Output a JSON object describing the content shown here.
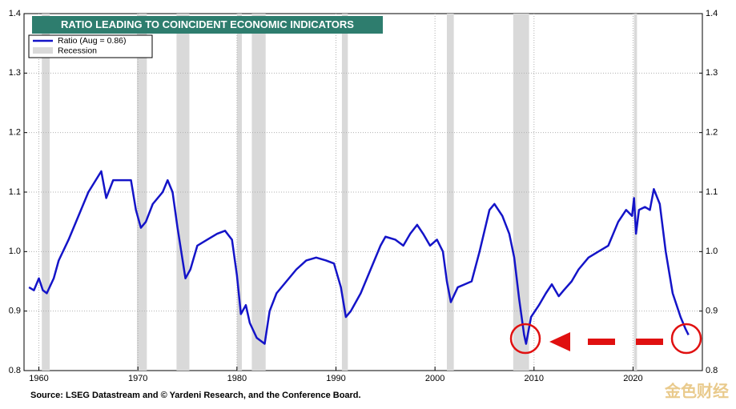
{
  "chart_data": {
    "type": "line",
    "title": "RATIO LEADING TO COINCIDENT ECONOMIC INDICATORS",
    "source": "Source: LSEG Datastream and © Yardeni Research, and the Conference Board.",
    "watermark": "金色财经",
    "recession_label": "Recession",
    "recession_color": "#d9d9d9",
    "recessions": [
      [
        1960.3,
        1961.1
      ],
      [
        1969.9,
        1970.9
      ],
      [
        1973.9,
        1975.2
      ],
      [
        1980.0,
        1980.5
      ],
      [
        1981.5,
        1982.9
      ],
      [
        1990.6,
        1991.2
      ],
      [
        2001.2,
        2001.9
      ],
      [
        2007.9,
        2009.5
      ],
      [
        2020.1,
        2020.4
      ]
    ],
    "xlim": [
      1958.5,
      2027
    ],
    "xticks": [
      1960,
      1970,
      1980,
      1990,
      2000,
      2010,
      2020
    ],
    "ylim": [
      0.8,
      1.4
    ],
    "yticks": [
      0.8,
      0.9,
      {
        "value": 1,
        "label": "1.0"
      },
      1.1,
      1.2,
      1.3,
      1.4
    ],
    "y2lim": [
      0.8,
      1.4
    ],
    "y2ticks": [
      0.8,
      0.9,
      {
        "value": 1,
        "label": "1.0"
      },
      1.1,
      1.2,
      1.3,
      1.4
    ],
    "grid": true,
    "series": [
      {
        "name": "Ratio  (Aug = 0.86)",
        "color": "#1414c8",
        "x": [
          1959.0,
          1959.5,
          1960.0,
          1960.4,
          1960.8,
          1961.5,
          1962,
          1963,
          1964,
          1965,
          1966.3,
          1966.8,
          1967.5,
          1968.5,
          1969.3,
          1969.8,
          1970.3,
          1970.8,
          1971.5,
          1972.5,
          1973,
          1973.5,
          1974,
          1974.8,
          1975.3,
          1976,
          1977,
          1978,
          1978.8,
          1979.5,
          1980,
          1980.4,
          1980.9,
          1981.3,
          1982,
          1982.8,
          1983.3,
          1984,
          1985,
          1986,
          1987,
          1988,
          1989,
          1989.8,
          1990.5,
          1991,
          1991.5,
          1992.5,
          1993.5,
          1994.5,
          1995,
          1996,
          1996.8,
          1997.5,
          1998.2,
          1998.8,
          1999.5,
          2000.2,
          2000.8,
          2001.2,
          2001.6,
          2002.3,
          2003,
          2003.7,
          2004.5,
          2005.5,
          2006,
          2006.8,
          2007.5,
          2008,
          2008.5,
          2009.0,
          2009.2,
          2009.7,
          2010.5,
          2011.2,
          2011.8,
          2012.5,
          2013,
          2013.8,
          2014.5,
          2015.5,
          2016.5,
          2017.5,
          2018.5,
          2019.3,
          2019.9,
          2020.1,
          2020.3,
          2020.6,
          2021.2,
          2021.7,
          2022.1,
          2022.7,
          2023.3,
          2024,
          2024.8,
          2025.3,
          2025.6
        ],
        "values": [
          0.94,
          0.935,
          0.955,
          0.935,
          0.93,
          0.955,
          0.985,
          1.02,
          1.06,
          1.1,
          1.135,
          1.09,
          1.12,
          1.12,
          1.12,
          1.07,
          1.04,
          1.05,
          1.08,
          1.1,
          1.12,
          1.1,
          1.04,
          0.955,
          0.97,
          1.01,
          1.02,
          1.03,
          1.035,
          1.02,
          0.96,
          0.895,
          0.91,
          0.88,
          0.855,
          0.845,
          0.9,
          0.93,
          0.95,
          0.97,
          0.985,
          0.99,
          0.985,
          0.98,
          0.94,
          0.89,
          0.9,
          0.93,
          0.97,
          1.01,
          1.025,
          1.02,
          1.01,
          1.03,
          1.045,
          1.03,
          1.01,
          1.02,
          1.0,
          0.95,
          0.915,
          0.94,
          0.945,
          0.95,
          1.0,
          1.07,
          1.08,
          1.06,
          1.03,
          0.99,
          0.92,
          0.86,
          0.845,
          0.89,
          0.91,
          0.93,
          0.945,
          0.925,
          0.935,
          0.95,
          0.97,
          0.99,
          1.0,
          1.01,
          1.05,
          1.07,
          1.06,
          1.09,
          1.03,
          1.07,
          1.075,
          1.07,
          1.105,
          1.08,
          1.0,
          0.93,
          0.89,
          0.87,
          0.86
        ]
      }
    ]
  }
}
